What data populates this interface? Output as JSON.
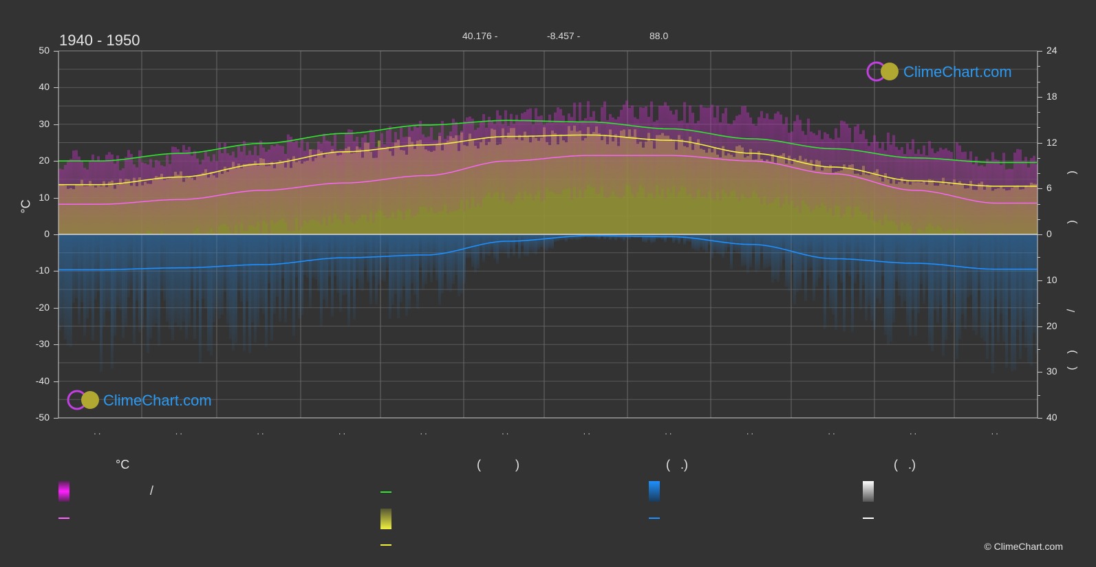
{
  "header": {
    "period": "1940 - 1950",
    "lat": "40.176 -",
    "lon": "-8.457 -",
    "elev": "88.0"
  },
  "axes": {
    "left_unit": "°C",
    "left_ticks": [
      "50",
      "40",
      "30",
      "20",
      "10",
      "0",
      "-10",
      "-20",
      "-30",
      "-40",
      "-50"
    ],
    "right_ticks_top": [
      "24",
      "18",
      "12",
      "6",
      "0"
    ],
    "right_ticks_bottom": [
      "10",
      "20",
      "30",
      "40"
    ],
    "right_glyphs": [
      ")",
      ")",
      "/",
      ")",
      "("
    ]
  },
  "month_marks": [
    ". .",
    ". .",
    ". .",
    ". .",
    ". .",
    ". .",
    ". .",
    ". .",
    ". .",
    ". .",
    ". .",
    ". ."
  ],
  "logo": {
    "text": "ClimeChart.com"
  },
  "legend": {
    "col1_title": "°C",
    "col1_slash": "/",
    "col2_title": "(          )",
    "col3_title": "(   .)",
    "col4_title": "(   .)"
  },
  "copyright": "© ClimeChart.com",
  "colors": {
    "background": "#333333",
    "daylight": "#33e533",
    "sunshine_line": "#f2f240",
    "sunshine_band": "#b8b82a",
    "max_temp_band": "#e040c0",
    "mean_temp": "#ff66ff",
    "precipitation": "#2a8ae0",
    "precip_line": "#1e90ff",
    "logo_blue": "#2b9af3"
  },
  "chart_data": {
    "type": "line",
    "x": [
      "1",
      "2",
      "3",
      "4",
      "5",
      "6",
      "7",
      "8",
      "9",
      "10",
      "11",
      "12"
    ],
    "xlabel": "",
    "ylabel": "°C",
    "ylim": [
      -50,
      50
    ],
    "y2lim_top": [
      0,
      24
    ],
    "y2lim_bottom": [
      0,
      40
    ],
    "grid": true,
    "series": [
      {
        "key": "daylight",
        "axis": "hours",
        "values": [
          9.6,
          10.6,
          11.9,
          13.2,
          14.3,
          14.9,
          14.7,
          13.8,
          12.5,
          11.2,
          10.0,
          9.4
        ]
      },
      {
        "key": "sunshine",
        "axis": "hours",
        "values": [
          6.5,
          7.5,
          9.2,
          10.8,
          11.7,
          12.8,
          13.0,
          12.3,
          10.6,
          8.8,
          7.0,
          6.3
        ]
      },
      {
        "key": "mean_temp",
        "axis": "temp",
        "values": [
          8.2,
          9.5,
          12.0,
          14.0,
          16.0,
          20.0,
          21.5,
          21.5,
          20.0,
          16.5,
          12.0,
          8.5
        ]
      },
      {
        "key": "precip_line",
        "axis": "precip",
        "values": [
          7.7,
          7.3,
          6.6,
          5.1,
          4.5,
          1.5,
          0.3,
          0.5,
          2.2,
          5.3,
          6.3,
          7.6
        ]
      }
    ]
  }
}
